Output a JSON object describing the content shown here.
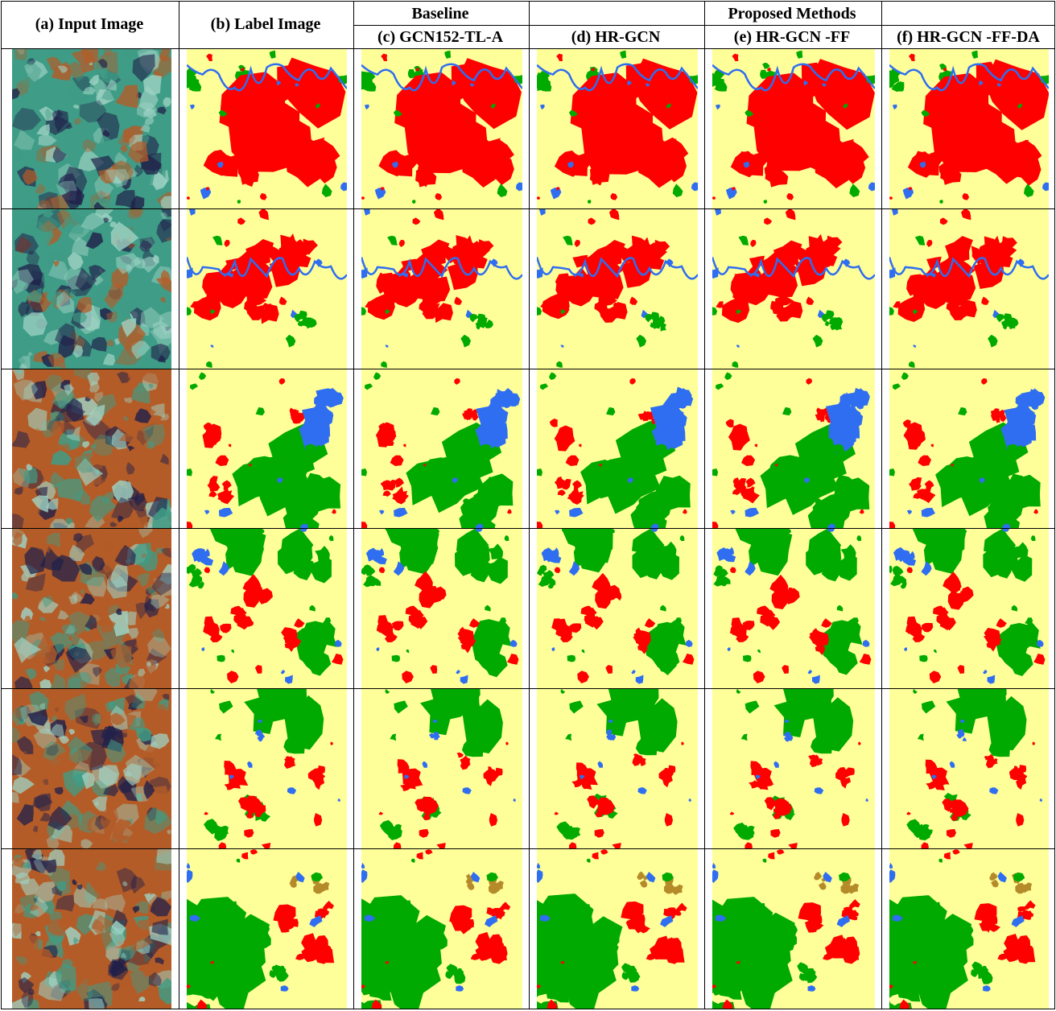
{
  "figure": {
    "group_headers": {
      "baseline": "Baseline",
      "proposed": "Proposed Methods"
    },
    "columns": [
      {
        "id": "a",
        "label": "(a)  Input Image",
        "kind": "input"
      },
      {
        "id": "b",
        "label": "(b)  Label Image",
        "kind": "label"
      },
      {
        "id": "c",
        "label": "(c)  GCN152-TL-A",
        "kind": "pred"
      },
      {
        "id": "d",
        "label": "(d)  HR-GCN",
        "kind": "pred"
      },
      {
        "id": "e",
        "label": "(e)  HR-GCN -FF",
        "kind": "pred"
      },
      {
        "id": "f",
        "label": "(f)  HR-GCN -FF-DA",
        "kind": "pred"
      }
    ],
    "row_count": 6,
    "class_colors": {
      "urban": "#ff0000",
      "agriculture": "#ffff9a",
      "forest": "#00aa00",
      "water": "#2f6ef0",
      "misc": "#b58b2a"
    },
    "input_colors": {
      "vegetation": "#3f9c86",
      "soil": "#b45c28",
      "dark": "#20204a",
      "bright": "#9fd3c4"
    }
  }
}
